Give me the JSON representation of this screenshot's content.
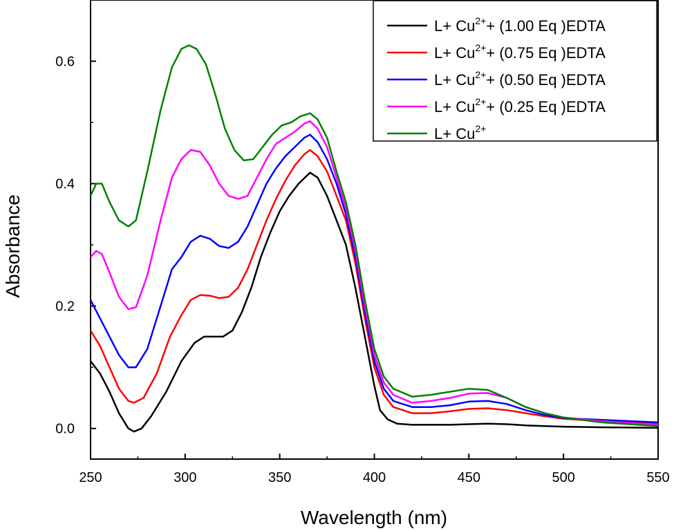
{
  "chart_data": {
    "type": "line",
    "xlabel": "Wavelength (nm)",
    "ylabel": "Absorbance",
    "xlim": [
      250,
      550
    ],
    "ylim": [
      -0.05,
      0.7
    ],
    "x_ticks": [
      "250",
      "300",
      "350",
      "400",
      "450",
      "500",
      "550"
    ],
    "y_ticks": [
      "0.0",
      "0.2",
      "0.4",
      "0.6"
    ],
    "legend_position": "top-right",
    "grid": false,
    "series": [
      {
        "name": "L+ Cu2+ + (1.00 Eq )EDTA",
        "legend": {
          "prefix": "L+ Cu",
          "sup": "2+",
          "suffix": "+ (1.00 Eq )EDTA"
        },
        "color": "#000000",
        "points": [
          [
            250,
            0.11
          ],
          [
            255,
            0.09
          ],
          [
            260,
            0.06
          ],
          [
            265,
            0.025
          ],
          [
            270,
            0.0
          ],
          [
            273,
            -0.005
          ],
          [
            277,
            0.0
          ],
          [
            282,
            0.02
          ],
          [
            290,
            0.06
          ],
          [
            298,
            0.11
          ],
          [
            305,
            0.14
          ],
          [
            310,
            0.15
          ],
          [
            315,
            0.15
          ],
          [
            320,
            0.15
          ],
          [
            325,
            0.16
          ],
          [
            330,
            0.19
          ],
          [
            335,
            0.23
          ],
          [
            340,
            0.28
          ],
          [
            345,
            0.32
          ],
          [
            350,
            0.355
          ],
          [
            355,
            0.38
          ],
          [
            360,
            0.4
          ],
          [
            366,
            0.418
          ],
          [
            370,
            0.41
          ],
          [
            375,
            0.38
          ],
          [
            380,
            0.34
          ],
          [
            385,
            0.3
          ],
          [
            390,
            0.23
          ],
          [
            395,
            0.15
          ],
          [
            400,
            0.07
          ],
          [
            403,
            0.03
          ],
          [
            407,
            0.015
          ],
          [
            412,
            0.008
          ],
          [
            420,
            0.006
          ],
          [
            430,
            0.006
          ],
          [
            440,
            0.006
          ],
          [
            450,
            0.007
          ],
          [
            460,
            0.008
          ],
          [
            470,
            0.007
          ],
          [
            480,
            0.005
          ],
          [
            490,
            0.004
          ],
          [
            500,
            0.003
          ],
          [
            520,
            0.002
          ],
          [
            550,
            0.001
          ]
        ]
      },
      {
        "name": "L+ Cu2+ + (0.75 Eq )EDTA",
        "legend": {
          "prefix": "L+ Cu",
          "sup": "2+",
          "suffix": "+ (0.75 Eq )EDTA"
        },
        "color": "#ff0000",
        "points": [
          [
            250,
            0.16
          ],
          [
            255,
            0.135
          ],
          [
            260,
            0.1
          ],
          [
            265,
            0.065
          ],
          [
            270,
            0.045
          ],
          [
            273,
            0.042
          ],
          [
            278,
            0.05
          ],
          [
            285,
            0.09
          ],
          [
            292,
            0.15
          ],
          [
            298,
            0.185
          ],
          [
            303,
            0.21
          ],
          [
            308,
            0.218
          ],
          [
            313,
            0.217
          ],
          [
            318,
            0.213
          ],
          [
            323,
            0.215
          ],
          [
            328,
            0.23
          ],
          [
            333,
            0.26
          ],
          [
            338,
            0.3
          ],
          [
            343,
            0.34
          ],
          [
            348,
            0.375
          ],
          [
            353,
            0.405
          ],
          [
            358,
            0.43
          ],
          [
            363,
            0.448
          ],
          [
            366,
            0.455
          ],
          [
            370,
            0.445
          ],
          [
            375,
            0.42
          ],
          [
            380,
            0.38
          ],
          [
            385,
            0.34
          ],
          [
            390,
            0.27
          ],
          [
            395,
            0.18
          ],
          [
            400,
            0.1
          ],
          [
            405,
            0.055
          ],
          [
            410,
            0.035
          ],
          [
            420,
            0.025
          ],
          [
            430,
            0.025
          ],
          [
            440,
            0.028
          ],
          [
            450,
            0.032
          ],
          [
            460,
            0.033
          ],
          [
            470,
            0.03
          ],
          [
            480,
            0.025
          ],
          [
            490,
            0.02
          ],
          [
            500,
            0.016
          ],
          [
            520,
            0.012
          ],
          [
            550,
            0.008
          ]
        ]
      },
      {
        "name": "L+ Cu2+ + (0.50 Eq )EDTA",
        "legend": {
          "prefix": "L+ Cu",
          "sup": "2+",
          "suffix": "+ (0.50 Eq )EDTA"
        },
        "color": "#0000ff",
        "points": [
          [
            250,
            0.21
          ],
          [
            255,
            0.18
          ],
          [
            260,
            0.15
          ],
          [
            265,
            0.12
          ],
          [
            270,
            0.1
          ],
          [
            274,
            0.1
          ],
          [
            280,
            0.13
          ],
          [
            287,
            0.2
          ],
          [
            293,
            0.26
          ],
          [
            298,
            0.28
          ],
          [
            303,
            0.305
          ],
          [
            308,
            0.315
          ],
          [
            313,
            0.31
          ],
          [
            318,
            0.298
          ],
          [
            323,
            0.295
          ],
          [
            328,
            0.305
          ],
          [
            333,
            0.33
          ],
          [
            338,
            0.365
          ],
          [
            343,
            0.4
          ],
          [
            348,
            0.425
          ],
          [
            353,
            0.445
          ],
          [
            358,
            0.46
          ],
          [
            363,
            0.475
          ],
          [
            366,
            0.48
          ],
          [
            370,
            0.468
          ],
          [
            375,
            0.44
          ],
          [
            380,
            0.4
          ],
          [
            385,
            0.35
          ],
          [
            390,
            0.28
          ],
          [
            395,
            0.19
          ],
          [
            400,
            0.11
          ],
          [
            405,
            0.065
          ],
          [
            410,
            0.045
          ],
          [
            420,
            0.035
          ],
          [
            430,
            0.035
          ],
          [
            440,
            0.038
          ],
          [
            450,
            0.044
          ],
          [
            460,
            0.045
          ],
          [
            470,
            0.04
          ],
          [
            480,
            0.03
          ],
          [
            490,
            0.022
          ],
          [
            500,
            0.017
          ],
          [
            520,
            0.014
          ],
          [
            550,
            0.01
          ]
        ]
      },
      {
        "name": "L+ Cu2+ + (0.25 Eq )EDTA",
        "legend": {
          "prefix": "L+ Cu",
          "sup": "2+",
          "suffix": "+ (0.25 Eq )EDTA"
        },
        "color": "#ff00ff",
        "points": [
          [
            250,
            0.28
          ],
          [
            253,
            0.29
          ],
          [
            256,
            0.285
          ],
          [
            260,
            0.255
          ],
          [
            265,
            0.215
          ],
          [
            270,
            0.195
          ],
          [
            274,
            0.198
          ],
          [
            280,
            0.25
          ],
          [
            287,
            0.34
          ],
          [
            293,
            0.41
          ],
          [
            298,
            0.44
          ],
          [
            303,
            0.455
          ],
          [
            308,
            0.452
          ],
          [
            313,
            0.43
          ],
          [
            318,
            0.4
          ],
          [
            323,
            0.38
          ],
          [
            328,
            0.375
          ],
          [
            333,
            0.38
          ],
          [
            338,
            0.41
          ],
          [
            343,
            0.44
          ],
          [
            348,
            0.465
          ],
          [
            353,
            0.475
          ],
          [
            358,
            0.485
          ],
          [
            363,
            0.498
          ],
          [
            366,
            0.502
          ],
          [
            370,
            0.49
          ],
          [
            375,
            0.46
          ],
          [
            380,
            0.41
          ],
          [
            385,
            0.36
          ],
          [
            390,
            0.29
          ],
          [
            395,
            0.2
          ],
          [
            400,
            0.12
          ],
          [
            405,
            0.075
          ],
          [
            410,
            0.055
          ],
          [
            420,
            0.042
          ],
          [
            430,
            0.045
          ],
          [
            440,
            0.05
          ],
          [
            450,
            0.057
          ],
          [
            460,
            0.058
          ],
          [
            470,
            0.05
          ],
          [
            480,
            0.035
          ],
          [
            490,
            0.025
          ],
          [
            500,
            0.018
          ],
          [
            520,
            0.012
          ],
          [
            550,
            0.006
          ]
        ]
      },
      {
        "name": "L+ Cu2+",
        "legend": {
          "prefix": "L+ Cu",
          "sup": "2+",
          "suffix": ""
        },
        "color": "#008000",
        "points": [
          [
            250,
            0.38
          ],
          [
            253,
            0.4
          ],
          [
            256,
            0.4
          ],
          [
            260,
            0.37
          ],
          [
            265,
            0.34
          ],
          [
            270,
            0.33
          ],
          [
            274,
            0.34
          ],
          [
            280,
            0.42
          ],
          [
            287,
            0.52
          ],
          [
            293,
            0.59
          ],
          [
            298,
            0.62
          ],
          [
            302,
            0.626
          ],
          [
            306,
            0.62
          ],
          [
            311,
            0.595
          ],
          [
            316,
            0.545
          ],
          [
            321,
            0.49
          ],
          [
            326,
            0.455
          ],
          [
            331,
            0.438
          ],
          [
            336,
            0.44
          ],
          [
            341,
            0.46
          ],
          [
            346,
            0.48
          ],
          [
            351,
            0.495
          ],
          [
            356,
            0.5
          ],
          [
            361,
            0.51
          ],
          [
            366,
            0.515
          ],
          [
            370,
            0.505
          ],
          [
            375,
            0.475
          ],
          [
            380,
            0.42
          ],
          [
            385,
            0.37
          ],
          [
            390,
            0.3
          ],
          [
            395,
            0.21
          ],
          [
            400,
            0.13
          ],
          [
            405,
            0.085
          ],
          [
            410,
            0.065
          ],
          [
            420,
            0.052
          ],
          [
            430,
            0.055
          ],
          [
            440,
            0.06
          ],
          [
            450,
            0.065
          ],
          [
            460,
            0.063
          ],
          [
            470,
            0.05
          ],
          [
            480,
            0.035
          ],
          [
            490,
            0.025
          ],
          [
            500,
            0.018
          ],
          [
            520,
            0.01
          ],
          [
            550,
            0.004
          ]
        ]
      }
    ]
  }
}
